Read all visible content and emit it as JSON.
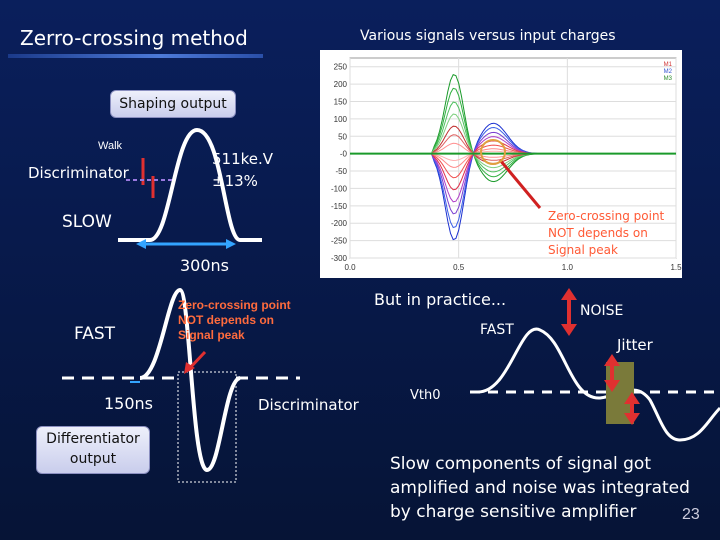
{
  "slide": {
    "title": "Zerro-crossing method",
    "subtitle": "Various signals versus input charges",
    "page_number": "23"
  },
  "left": {
    "shaping_output": "Shaping output",
    "walk": "Walk",
    "discriminator": "Discriminator",
    "energy_line1": "511ke.V",
    "energy_line2": "±13%",
    "slow": "SLOW",
    "time_300": "300ns",
    "fast": "FAST",
    "time_150": "150ns",
    "differentiator_line1": "Differentiator",
    "differentiator_line2": "output",
    "zero_crossing_line1": "Zero-crossing point",
    "zero_crossing_line2": "NOT depends on",
    "zero_crossing_line3": "Signal peak",
    "discriminator2": "Discriminator"
  },
  "right": {
    "but_in_practice": "But in practice...",
    "noise": "NOISE",
    "fast": "FAST",
    "jitter": "Jitter",
    "vth0": "Vth0",
    "zero_crossing_line1": "Zero-crossing point",
    "zero_crossing_line2": "NOT depends on",
    "zero_crossing_line3": "Signal peak",
    "summary": "Slow components of signal got amplified and noise was integrated by charge sensitive amplifier"
  },
  "chart_data": {
    "type": "line",
    "title": "Various signals versus input charges",
    "xlim": [
      0.0,
      1.5
    ],
    "ylim": [
      -300,
      275
    ],
    "x_ticks": [
      "0.0",
      "0.5",
      "1.0",
      "1.5"
    ],
    "y_ticks": [
      "250",
      "200",
      "150",
      "100",
      "50",
      "-0",
      "-50",
      "-100",
      "-150",
      "-200",
      "-250",
      "-300"
    ],
    "series_peaks": [
      -250,
      -215,
      -175,
      -140,
      -105,
      -70,
      -40,
      -20,
      230,
      190,
      150,
      115,
      80,
      55,
      30
    ],
    "series_colors": [
      "#1a2fd0",
      "#3a5fe8",
      "#7a3fd0",
      "#b03fc8",
      "#e0304a",
      "#f05050",
      "#ff8a8a",
      "#ffb0b0",
      "#1a9a2a",
      "#30b040",
      "#50c060",
      "#80d080",
      "#c03030",
      "#e06060",
      "#ff9090"
    ],
    "legend": [
      "M1",
      "M2",
      "M3"
    ]
  }
}
